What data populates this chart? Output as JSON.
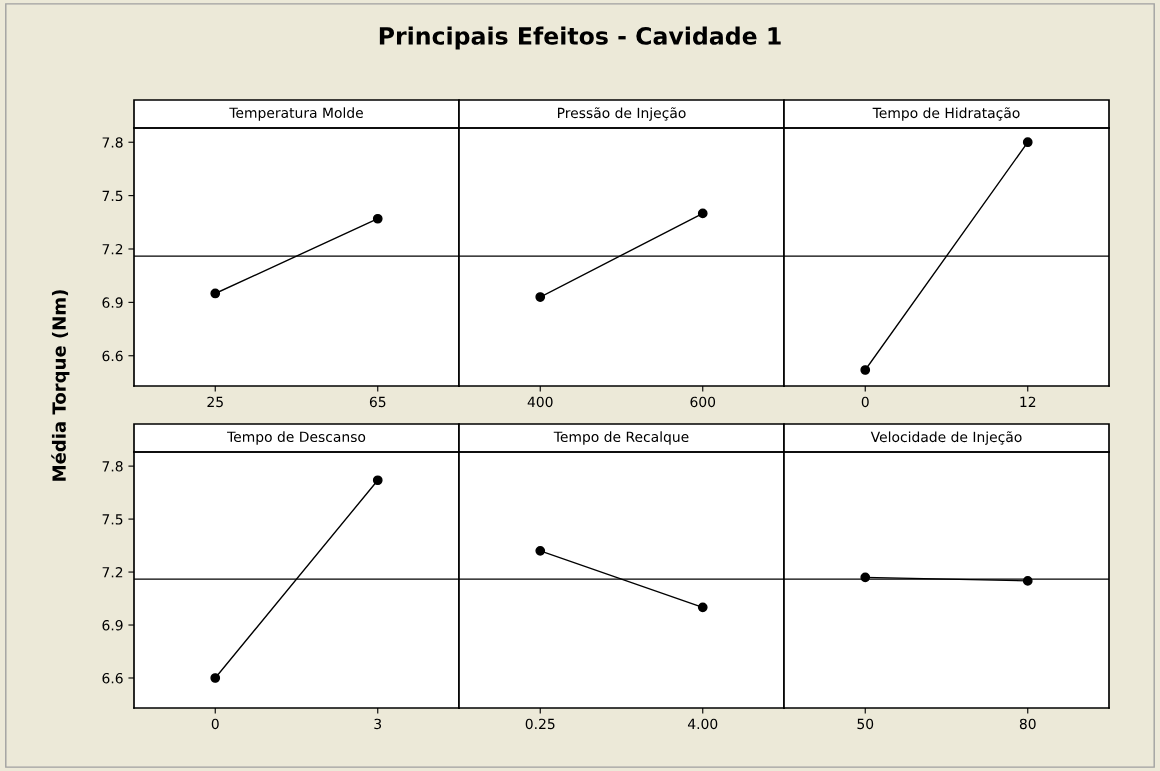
{
  "chart_data": [
    {
      "type": "other",
      "title": "Principais Efeitos - Cavidade 1",
      "ylabel": "Média Torque (Nm)"
    },
    {
      "type": "line",
      "title": "Temperatura Molde",
      "categories": [
        "25",
        "65"
      ],
      "series": [
        {
          "color": "#000000",
          "values": [
            6.95,
            7.37
          ]
        }
      ],
      "ylim": [
        6.43,
        7.88
      ],
      "yticks": [
        6.6,
        6.9,
        7.2,
        7.5,
        7.8
      ],
      "ref_lines": [
        {
          "axis": "y",
          "value": 7.16,
          "color": "#000000"
        }
      ],
      "marker": "circle",
      "grid": false
    },
    {
      "type": "line",
      "title": "Pressão de Injeção",
      "categories": [
        "400",
        "600"
      ],
      "series": [
        {
          "color": "#000000",
          "values": [
            6.93,
            7.4
          ]
        }
      ],
      "ylim": [
        6.43,
        7.88
      ],
      "yticks": [
        6.6,
        6.9,
        7.2,
        7.5,
        7.8
      ],
      "tick_labels": "x",
      "ref_lines": [
        {
          "axis": "y",
          "value": 7.16,
          "color": "#000000"
        }
      ],
      "marker": "circle",
      "grid": false
    },
    {
      "type": "line",
      "title": "Tempo de Hidratação",
      "categories": [
        "0",
        "12"
      ],
      "series": [
        {
          "color": "#000000",
          "values": [
            6.52,
            7.8
          ]
        }
      ],
      "ylim": [
        6.43,
        7.88
      ],
      "yticks": [
        6.6,
        6.9,
        7.2,
        7.5,
        7.8
      ],
      "tick_labels": "x",
      "ref_lines": [
        {
          "axis": "y",
          "value": 7.16,
          "color": "#000000"
        }
      ],
      "marker": "circle",
      "grid": false
    },
    {
      "type": "line",
      "title": "Tempo de Descanso",
      "categories": [
        "0",
        "3"
      ],
      "series": [
        {
          "color": "#000000",
          "values": [
            6.6,
            7.72
          ]
        }
      ],
      "ylim": [
        6.43,
        7.88
      ],
      "yticks": [
        6.6,
        6.9,
        7.2,
        7.5,
        7.8
      ],
      "ref_lines": [
        {
          "axis": "y",
          "value": 7.16,
          "color": "#000000"
        }
      ],
      "marker": "circle",
      "grid": false
    },
    {
      "type": "line",
      "title": "Tempo de Recalque",
      "categories": [
        "0.25",
        "4.00"
      ],
      "series": [
        {
          "color": "#000000",
          "values": [
            7.32,
            7.0
          ]
        }
      ],
      "ylim": [
        6.43,
        7.88
      ],
      "yticks": [
        6.6,
        6.9,
        7.2,
        7.5,
        7.8
      ],
      "tick_labels": "x",
      "ref_lines": [
        {
          "axis": "y",
          "value": 7.16,
          "color": "#000000"
        }
      ],
      "marker": "circle",
      "grid": false
    },
    {
      "type": "line",
      "title": "Velocidade de Injeção",
      "categories": [
        "50",
        "80"
      ],
      "series": [
        {
          "color": "#000000",
          "values": [
            7.17,
            7.15
          ]
        }
      ],
      "ylim": [
        6.43,
        7.88
      ],
      "yticks": [
        6.6,
        6.9,
        7.2,
        7.5,
        7.8
      ],
      "tick_labels": "x",
      "ref_lines": [
        {
          "axis": "y",
          "value": 7.16,
          "color": "#000000"
        }
      ],
      "marker": "circle",
      "grid": false
    }
  ]
}
